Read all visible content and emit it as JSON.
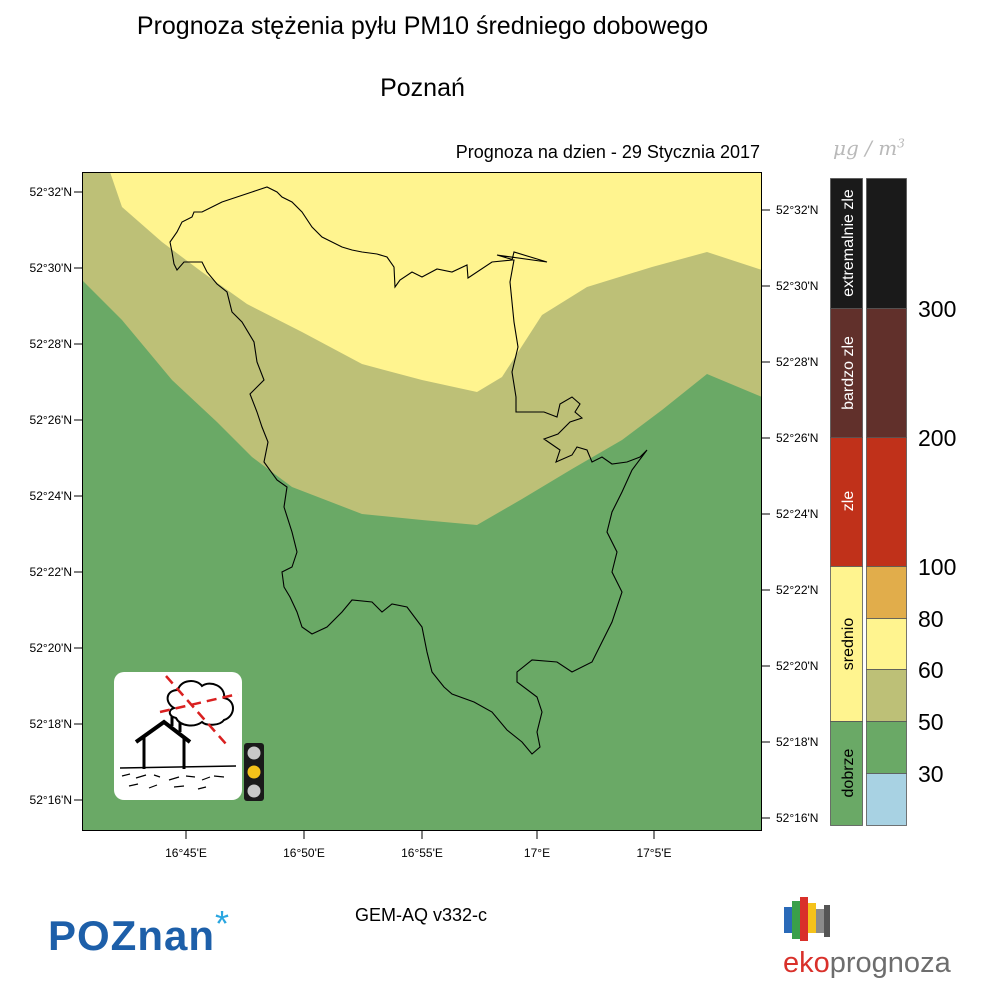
{
  "header": {
    "title": "Prognoza stężenia pyłu PM10 średniego dobowego",
    "subtitle": "Poznań",
    "forecast_date": "Prognoza na dzien -  29 Stycznia 2017"
  },
  "map": {
    "lat_labels_left": [
      "52°32'N",
      "52°30'N",
      "52°28'N",
      "52°26'N",
      "52°24'N",
      "52°22'N",
      "52°20'N",
      "52°18'N",
      "52°16'N"
    ],
    "lat_labels_right": [
      "52°32'N",
      "52°30'N",
      "52°28'N",
      "52°26'N",
      "52°24'N",
      "52°22'N",
      "52°20'N",
      "52°18'N",
      "52°16'N"
    ],
    "lon_labels": [
      "16°45'E",
      "16°50'E",
      "16°55'E",
      "17°E",
      "17°5'E"
    ],
    "zone_colors": {
      "good": "#6aa966",
      "moderate_low": "#bdc077",
      "moderate_mid": "#fff48f"
    },
    "traffic_light_icon": "traffic-light-icon",
    "pollution_icon": "house-smoke-icon"
  },
  "legend": {
    "unit": {
      "base": "μg / m",
      "sup": "3"
    },
    "categories": [
      {
        "label": "extremalnie zle",
        "color": "#1a1a1a"
      },
      {
        "label": "bardzo zle",
        "color": "#61302b"
      },
      {
        "label": "zle",
        "color": "#c0311a"
      },
      {
        "label": "srednio",
        "color": "#fff48f"
      },
      {
        "label": "dobrze",
        "color": "#6aa966"
      }
    ],
    "scale_colors": [
      "#1a1a1a",
      "#61302b",
      "#c0311a",
      "#e1ad4b",
      "#fff48f",
      "#bdc077",
      "#6aa966",
      "#a8d2e3"
    ],
    "thresholds": [
      "300",
      "200",
      "100",
      "80",
      "60",
      "50",
      "30"
    ]
  },
  "footer": {
    "model": "GEM-AQ v332-c",
    "logo_left": "POZnan",
    "logo_left_star": "*",
    "logo_right_eko": "eko",
    "logo_right_rest": "prognoza"
  }
}
